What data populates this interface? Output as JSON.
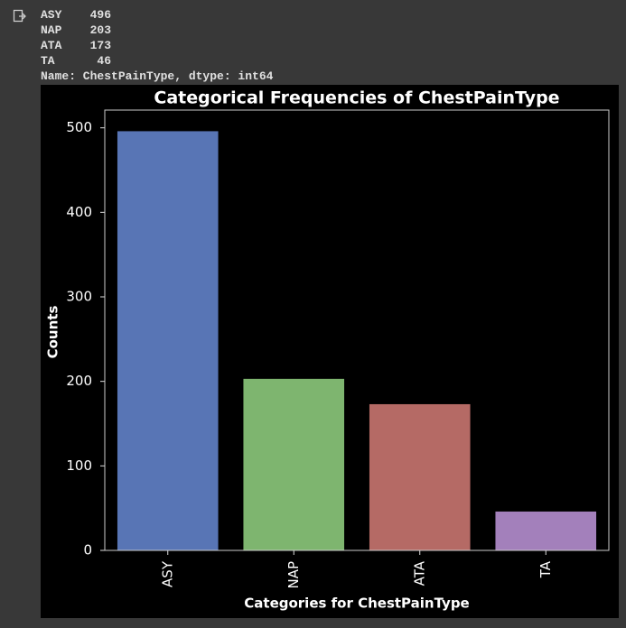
{
  "console_output": {
    "lines": [
      "ASY    496",
      "NAP    203",
      "ATA    173",
      "TA      46",
      "Name: ChestPainType, dtype: int64"
    ]
  },
  "chart_data": {
    "type": "bar",
    "title": "Categorical Frequencies of ChestPainType",
    "x_label": "Categories for ChestPainType",
    "y_label": "Counts",
    "categories": [
      "ASY",
      "NAP",
      "ATA",
      "TA"
    ],
    "values": [
      496,
      203,
      173,
      46
    ],
    "colors": [
      "#5875b5",
      "#7eb56f",
      "#b56a65",
      "#a380bb"
    ],
    "ylim": [
      0,
      521
    ],
    "yticks": [
      0,
      100,
      200,
      300,
      400,
      500
    ]
  }
}
